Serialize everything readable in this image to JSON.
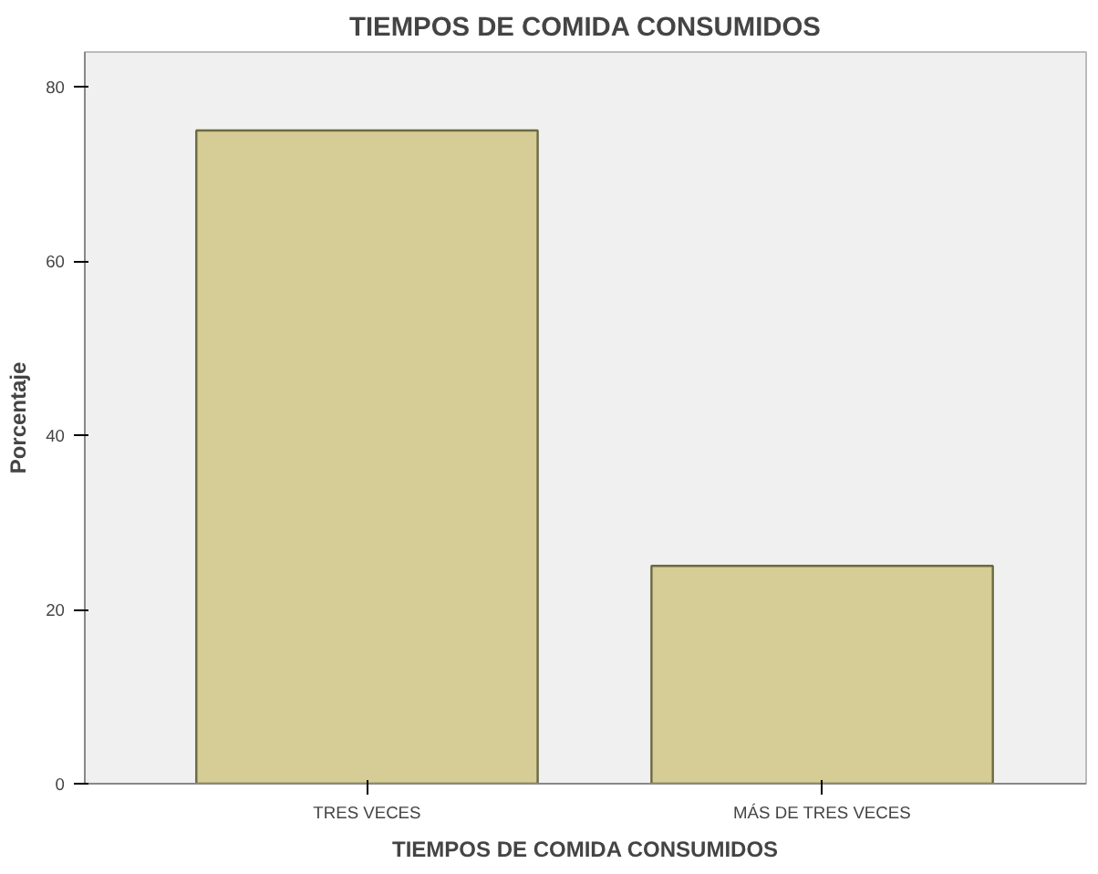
{
  "chart_data": {
    "type": "bar",
    "title": "TIEMPOS DE COMIDA CONSUMIDOS",
    "xlabel": "TIEMPOS DE COMIDA CONSUMIDOS",
    "ylabel": "Porcentaje",
    "categories": [
      "TRES VECES",
      "MÁS DE TRES VECES"
    ],
    "values": [
      75,
      25
    ],
    "color": "#d5cd95",
    "ylim": [
      0,
      84
    ],
    "yticks": [
      0,
      20,
      40,
      60,
      80
    ],
    "grid": false
  }
}
